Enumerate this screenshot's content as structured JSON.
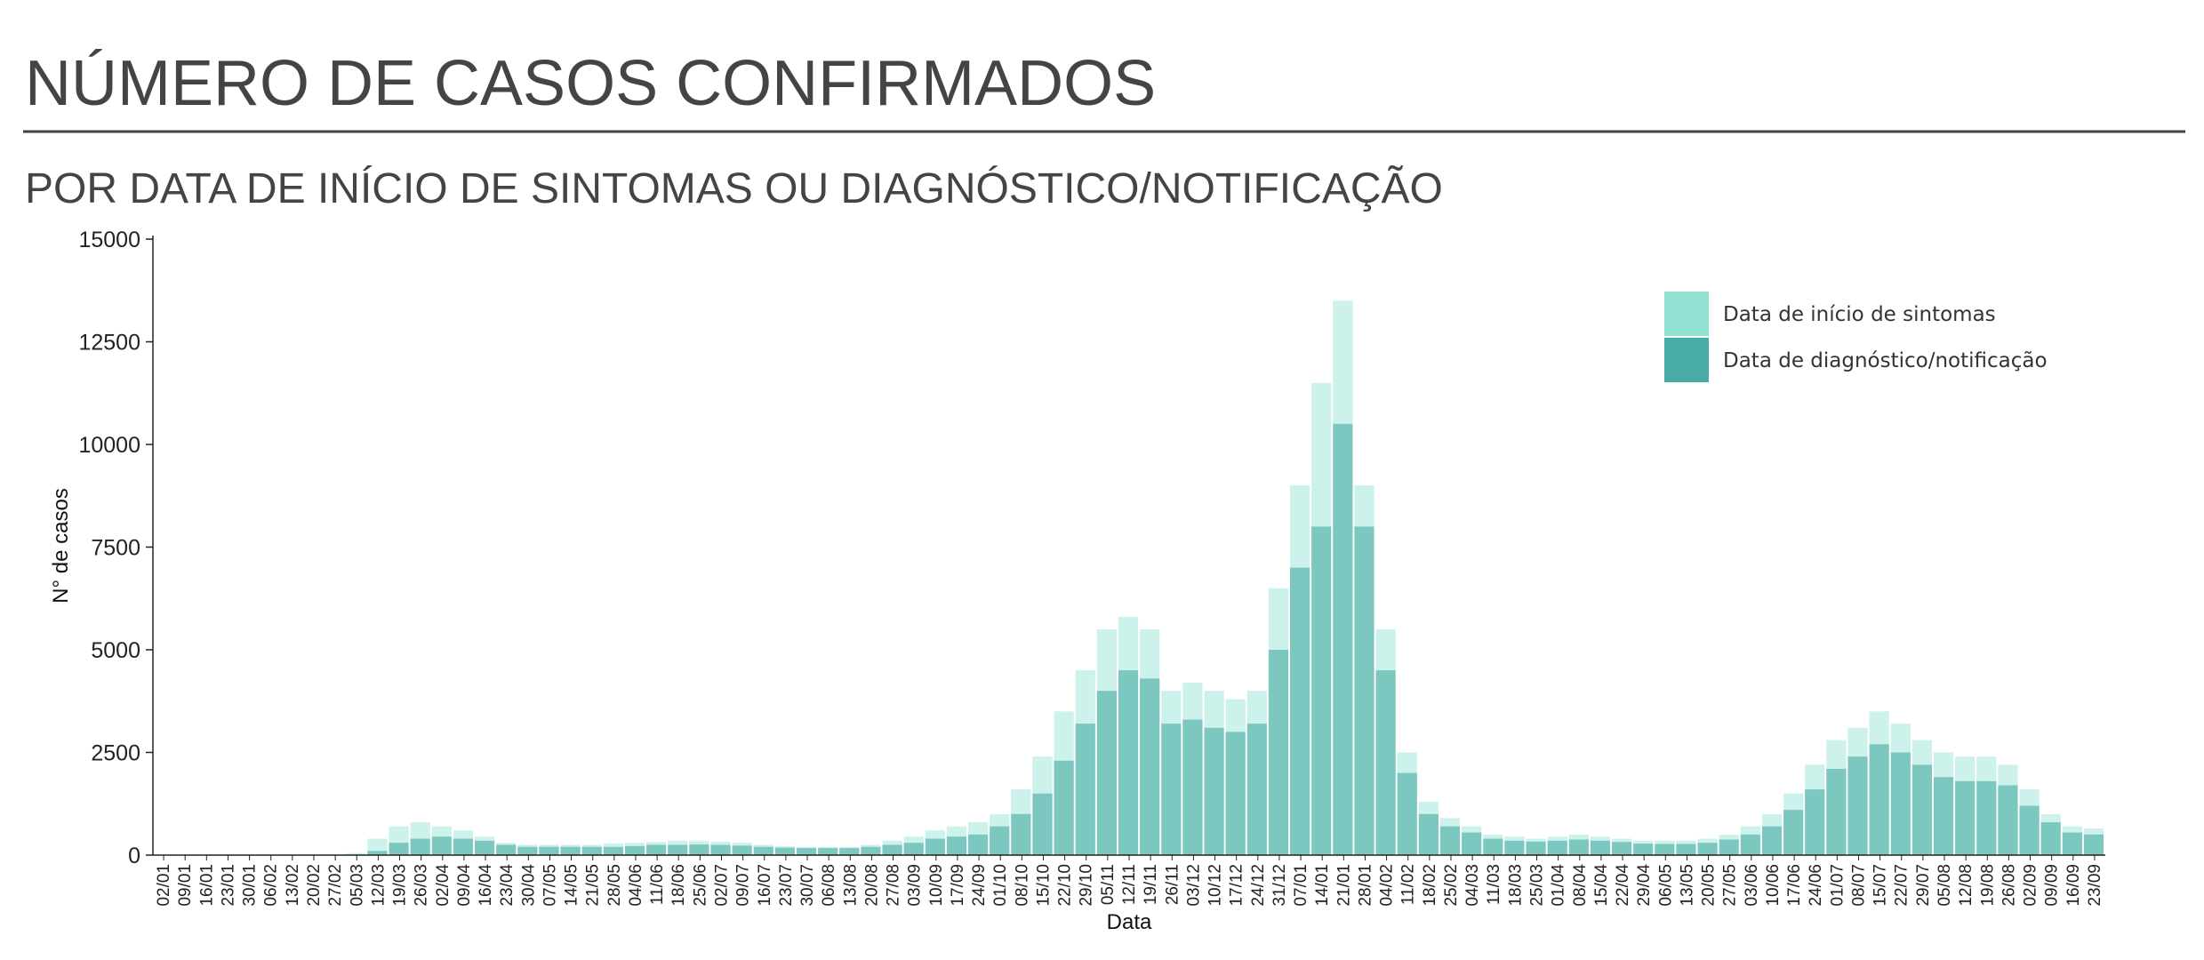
{
  "chart_data": {
    "type": "bar",
    "title": "NÚMERO DE CASOS CONFIRMADOS",
    "subtitle": "POR DATA DE INÍCIO DE SINTOMAS OU DIAGNÓSTICO/NOTIFICAÇÃO",
    "x_label": "Data",
    "y_label": "N° de casos",
    "categories": [
      "02/01",
      "09/01",
      "16/01",
      "23/01",
      "30/01",
      "06/02",
      "13/02",
      "20/02",
      "27/02",
      "05/03",
      "12/03",
      "19/03",
      "26/03",
      "02/04",
      "09/04",
      "16/04",
      "23/04",
      "30/04",
      "07/05",
      "14/05",
      "21/05",
      "28/05",
      "04/06",
      "11/06",
      "18/06",
      "25/06",
      "02/07",
      "09/07",
      "16/07",
      "23/07",
      "30/07",
      "06/08",
      "13/08",
      "20/08",
      "27/08",
      "03/09",
      "10/09",
      "17/09",
      "24/09",
      "01/10",
      "08/10",
      "15/10",
      "22/10",
      "29/10",
      "05/11",
      "12/11",
      "19/11",
      "26/11",
      "03/12",
      "10/12",
      "17/12",
      "24/12",
      "31/12",
      "07/01",
      "14/01",
      "21/01",
      "28/01",
      "04/02",
      "11/02",
      "18/02",
      "25/02",
      "04/03",
      "11/03",
      "18/03",
      "25/03",
      "01/04",
      "08/04",
      "15/04",
      "22/04",
      "29/04",
      "06/05",
      "13/05",
      "20/05",
      "27/05",
      "03/06",
      "10/06",
      "17/06",
      "24/06",
      "01/07",
      "08/07",
      "15/07",
      "22/07",
      "29/07",
      "05/08",
      "12/08",
      "19/08",
      "26/08",
      "02/09",
      "09/09",
      "16/09",
      "23/09"
    ],
    "series": [
      {
        "name": "Data de início de sintomas",
        "color": "#90e0d3",
        "values": [
          0,
          0,
          0,
          0,
          0,
          0,
          0,
          0,
          0,
          50,
          400,
          700,
          800,
          700,
          600,
          450,
          300,
          250,
          250,
          250,
          250,
          280,
          300,
          320,
          350,
          350,
          330,
          300,
          250,
          220,
          200,
          200,
          200,
          250,
          350,
          450,
          600,
          700,
          800,
          1000,
          1600,
          2400,
          3500,
          4500,
          5500,
          5800,
          5500,
          4000,
          4200,
          4000,
          3800,
          4000,
          6500,
          9000,
          11500,
          13500,
          9000,
          5500,
          2500,
          1300,
          900,
          700,
          500,
          450,
          400,
          450,
          500,
          450,
          400,
          350,
          350,
          350,
          400,
          500,
          700,
          1000,
          1500,
          2200,
          2800,
          3100,
          3500,
          3200,
          2800,
          2500,
          2400,
          2400,
          2200,
          1600,
          1000,
          700,
          650
        ]
      },
      {
        "name": "Data de diagnóstico/notificação",
        "color": "#47aca5",
        "values": [
          0,
          0,
          0,
          0,
          0,
          0,
          0,
          0,
          0,
          0,
          100,
          300,
          400,
          450,
          400,
          350,
          250,
          200,
          200,
          200,
          200,
          200,
          220,
          250,
          250,
          260,
          250,
          230,
          200,
          180,
          170,
          170,
          170,
          200,
          250,
          300,
          400,
          450,
          500,
          700,
          1000,
          1500,
          2300,
          3200,
          4000,
          4500,
          4300,
          3200,
          3300,
          3100,
          3000,
          3200,
          5000,
          7000,
          8000,
          10500,
          8000,
          4500,
          2000,
          1000,
          700,
          550,
          400,
          350,
          330,
          350,
          380,
          350,
          320,
          280,
          270,
          270,
          300,
          380,
          500,
          700,
          1100,
          1600,
          2100,
          2400,
          2700,
          2500,
          2200,
          1900,
          1800,
          1800,
          1700,
          1200,
          800,
          550,
          500
        ]
      }
    ],
    "ylim": [
      0,
      15000
    ],
    "yticks": [
      0,
      2500,
      5000,
      7500,
      10000,
      12500,
      15000
    ],
    "grid": false,
    "legend": "top-right"
  }
}
